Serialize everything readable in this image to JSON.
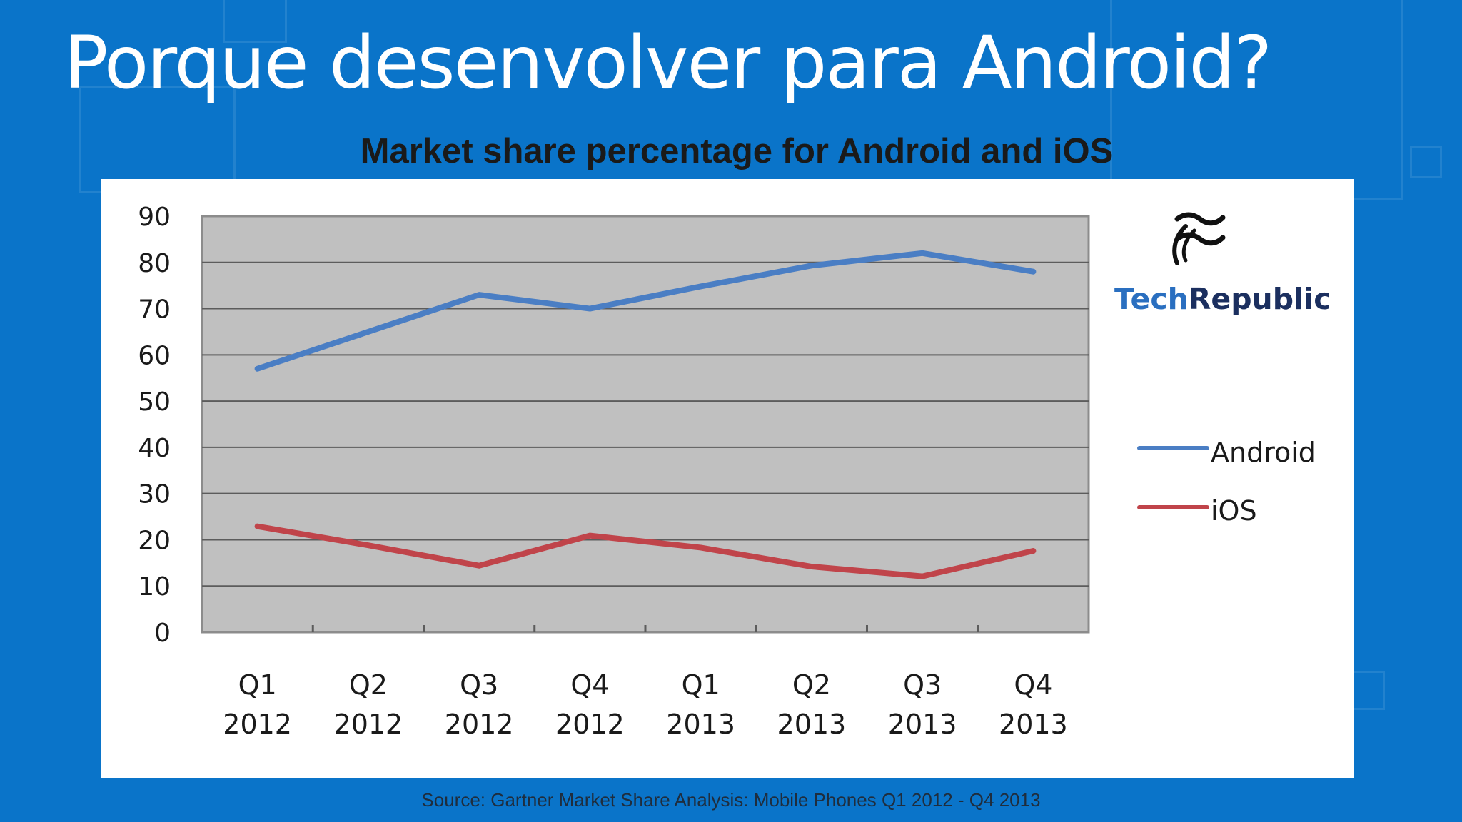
{
  "slide": {
    "title": "Porque desenvolver para Android?",
    "source": "Source: Gartner Market Share Analysis: Mobile Phones Q1 2012 - Q4 2013"
  },
  "logo": {
    "prefix": "Tech",
    "suffix": "Republic",
    "icon": "techrepublic-logo-icon",
    "colors": {
      "tech": "#2a6fc0",
      "republic": "#1b2f5f"
    }
  },
  "chart_data": {
    "type": "line",
    "title": "Market share percentage for Android and iOS",
    "xlabel": "",
    "ylabel": "",
    "categories": [
      [
        "Q1",
        "2012"
      ],
      [
        "Q2",
        "2012"
      ],
      [
        "Q3",
        "2012"
      ],
      [
        "Q4",
        "2012"
      ],
      [
        "Q1",
        "2013"
      ],
      [
        "Q2",
        "2013"
      ],
      [
        "Q3",
        "2013"
      ],
      [
        "Q4",
        "2013"
      ]
    ],
    "ylim": [
      0,
      90
    ],
    "yticks": [
      0,
      10,
      20,
      30,
      40,
      50,
      60,
      70,
      80,
      90
    ],
    "grid": true,
    "plot_background": "#c0c0c0",
    "legend_position": "right",
    "series": [
      {
        "name": "Android",
        "color": "#4a7ec4",
        "values": [
          57,
          65,
          73,
          70,
          74.8,
          79.3,
          82,
          78
        ]
      },
      {
        "name": "iOS",
        "color": "#c0444a",
        "values": [
          22.9,
          18.8,
          14.4,
          20.9,
          18.3,
          14.2,
          12.1,
          17.6
        ]
      }
    ]
  }
}
